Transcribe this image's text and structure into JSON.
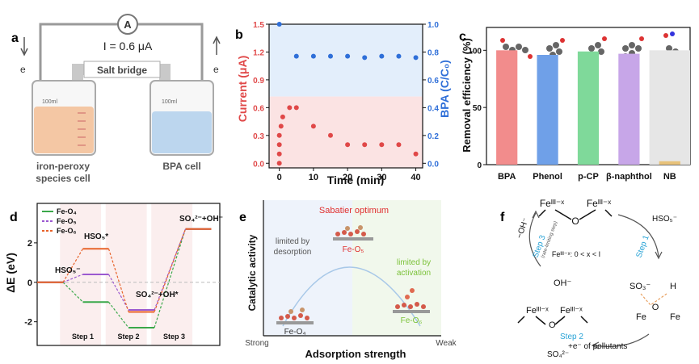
{
  "header_text": "",
  "panel_a": {
    "label": "a",
    "meter": "A",
    "current_text": "I = 0.6 μA",
    "electron_left": "e",
    "electron_right": "e",
    "bridge_label": "Salt bridge",
    "left_volume": "100ml",
    "right_volume": "100ml",
    "left_cell_line1": "iron-peroxy",
    "left_cell_line2": "species cell",
    "right_cell": "BPA cell",
    "colors": {
      "left_liquid": "#f4c7a4",
      "right_liquid": "#bcd6ee",
      "wire": "#9a9a9a"
    }
  },
  "panel_b": {
    "label": "b",
    "chart_data": {
      "type": "scatter",
      "xlabel": "Time (min)",
      "ylabel_left": "Current (μA)",
      "ylabel_right": "BPA (C/C₀)",
      "xlim": [
        -3,
        42
      ],
      "ylim_left": [
        -0.05,
        1.5
      ],
      "ylim_right": [
        -0.033,
        1.0
      ],
      "x_ticks": [
        "0",
        "10",
        "20",
        "30",
        "40"
      ],
      "y_ticks_left": [
        "0.0",
        "0.3",
        "0.6",
        "0.9",
        "1.2",
        "1.5"
      ],
      "y_ticks_right": [
        "0.0",
        "0.2",
        "0.4",
        "0.6",
        "0.8",
        "1.0"
      ],
      "series": [
        {
          "axis": "left",
          "color": "#e04848",
          "x": [
            0,
            0,
            0,
            0,
            0.5,
            1,
            3,
            5,
            10,
            15,
            20,
            25,
            30,
            35,
            40
          ],
          "y": [
            0.0,
            0.1,
            0.2,
            0.3,
            0.4,
            0.5,
            0.6,
            0.6,
            0.4,
            0.3,
            0.2,
            0.2,
            0.2,
            0.2,
            0.1
          ]
        },
        {
          "axis": "right",
          "color": "#2f6fd8",
          "x": [
            0,
            5,
            10,
            15,
            20,
            25,
            30,
            35,
            40
          ],
          "y": [
            1.0,
            0.77,
            0.77,
            0.77,
            0.77,
            0.76,
            0.77,
            0.77,
            0.76
          ]
        }
      ],
      "colors": {
        "top_band": "#e3eefb",
        "bottom_band": "#fbe3e3"
      }
    }
  },
  "panel_c": {
    "label": "c",
    "chart_data": {
      "type": "bar",
      "categories": [
        "BPA",
        "Phenol",
        "p-CP",
        "β-naphthol",
        "NB"
      ],
      "values": [
        100,
        96,
        99,
        97,
        3
      ],
      "ylabel": "Removal efficiency (%)",
      "ylim": [
        0,
        120
      ],
      "y_ticks": [
        "0",
        "50",
        "100"
      ],
      "colors": [
        "#f28c8c",
        "#6fa0e8",
        "#7fd99a",
        "#c7a6e8",
        "#e8c27a"
      ]
    }
  },
  "panel_d": {
    "label": "d",
    "ylabel": "ΔE (eV)",
    "y_ticks": [
      "-2",
      "0",
      "2"
    ],
    "legend": [
      "Fe-O₄",
      "Fe-O₅",
      "Fe-O₆"
    ],
    "legend_colors": [
      "#3aa84a",
      "#9b59d0",
      "#e8632a"
    ],
    "steps": [
      "Step 1",
      "Step 2",
      "Step 3"
    ],
    "species": {
      "hso5_minus": "HSO₅⁻",
      "hso5_star": "HSO₅*",
      "so4_oh_star": "SO₄²⁻+OH*",
      "so4_oh_minus": "SO₄²⁻+OH⁻"
    },
    "chart_data": {
      "type": "line",
      "x": [
        "HSO₅⁻",
        "HSO₅*",
        "SO₄²⁻+OH*",
        "SO₄²⁻+OH⁻"
      ],
      "series": [
        {
          "name": "Fe-O₄",
          "values": [
            0,
            -1.0,
            -2.3,
            2.7
          ]
        },
        {
          "name": "Fe-O₅",
          "values": [
            0,
            0.4,
            -1.4,
            2.7
          ]
        },
        {
          "name": "Fe-O₆",
          "values": [
            0,
            1.7,
            -1.5,
            2.7
          ]
        }
      ],
      "ylim": [
        -3.2,
        4.0
      ]
    }
  },
  "panel_e": {
    "label": "e",
    "title": "Sabatier optimum",
    "ylabel": "Catalytic activity",
    "xlabel": "Adsorption strength",
    "x_left": "Strong",
    "x_right": "Weak",
    "left_note_line1": "limited by",
    "left_note_line2": "desorption",
    "right_note_line1": "limited by",
    "right_note_line2": "activation",
    "cat_top": "Fe-O₅",
    "cat_left": "Fe-O₄",
    "cat_right": "Fe-O₆",
    "colors": {
      "title": "#e03030",
      "right_note": "#7cc23a",
      "top_label": "#e03030"
    }
  },
  "panel_f": {
    "label": "f",
    "fe_top": "Feᴵᴵᴵ⁻ˣ",
    "o": "O",
    "hso5": "HSO₅⁻",
    "step1": "Step 1",
    "step2": "Step 2",
    "step3": "Step 3",
    "rate_note": "(rate-limiting step)",
    "oh_minus": "−OH⁻",
    "center": "Feᴵᴵᴵ⁻ˣ: 0 < x < I",
    "so3": "SO₃⁻",
    "h": "H",
    "fe": "Fe",
    "oh": "OH⁻",
    "so4": "SO₄²⁻",
    "electrons": "+e⁻ of pollutants",
    "colors": {
      "step": "#29a3d6"
    }
  }
}
